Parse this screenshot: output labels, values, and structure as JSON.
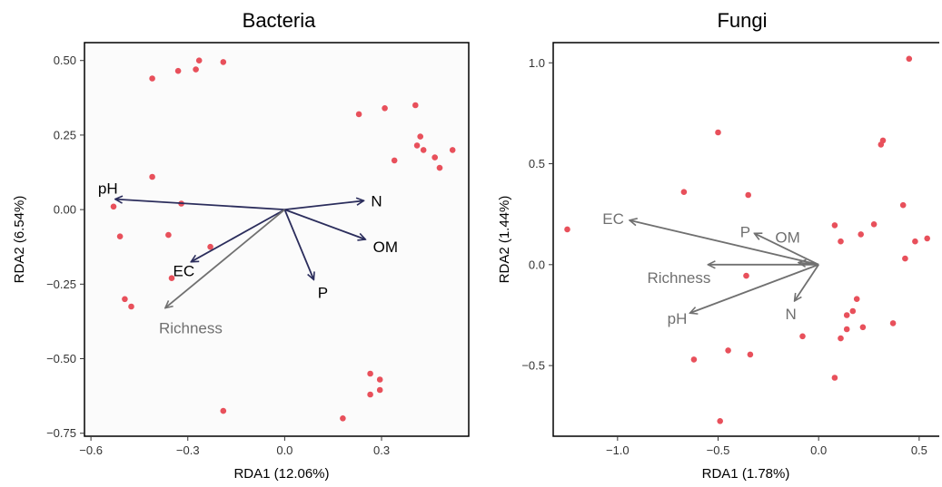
{
  "colors": {
    "point": "#E8505B",
    "arrow_dark": "#2B2D5C",
    "arrow_gray": "#707070",
    "panel_bg": "#FBFBFB",
    "frame": "#000000"
  },
  "chart_data": [
    {
      "type": "scatter",
      "title": "Bacteria",
      "xlabel": "RDA1 (12.06%)",
      "ylabel": "RDA2 (6.54%)",
      "xlim": [
        -0.62,
        0.57
      ],
      "ylim": [
        -0.76,
        0.56
      ],
      "xticks": [
        -0.6,
        -0.3,
        0.0,
        0.3
      ],
      "xtick_labels": [
        "−0.6",
        "−0.3",
        "0.0",
        "0.3"
      ],
      "yticks": [
        -0.75,
        -0.5,
        -0.25,
        0.0,
        0.25,
        0.5
      ],
      "ytick_labels": [
        "−0.75",
        "−0.50",
        "−0.25",
        "0.00",
        "0.25",
        "0.50"
      ],
      "grid": false,
      "points": [
        {
          "x": -0.41,
          "y": 0.44
        },
        {
          "x": -0.33,
          "y": 0.465
        },
        {
          "x": -0.275,
          "y": 0.47
        },
        {
          "x": -0.265,
          "y": 0.5
        },
        {
          "x": -0.19,
          "y": 0.495
        },
        {
          "x": 0.23,
          "y": 0.32
        },
        {
          "x": 0.31,
          "y": 0.34
        },
        {
          "x": 0.405,
          "y": 0.35
        },
        {
          "x": 0.41,
          "y": 0.215
        },
        {
          "x": 0.42,
          "y": 0.245
        },
        {
          "x": 0.43,
          "y": 0.2
        },
        {
          "x": 0.465,
          "y": 0.175
        },
        {
          "x": 0.48,
          "y": 0.14
        },
        {
          "x": 0.52,
          "y": 0.2
        },
        {
          "x": 0.34,
          "y": 0.165
        },
        {
          "x": -0.41,
          "y": 0.11
        },
        {
          "x": -0.53,
          "y": 0.01
        },
        {
          "x": -0.32,
          "y": 0.02
        },
        {
          "x": -0.51,
          "y": -0.09
        },
        {
          "x": -0.36,
          "y": -0.085
        },
        {
          "x": -0.23,
          "y": -0.125
        },
        {
          "x": -0.35,
          "y": -0.23
        },
        {
          "x": -0.495,
          "y": -0.3
        },
        {
          "x": -0.475,
          "y": -0.325
        },
        {
          "x": -0.19,
          "y": -0.675
        },
        {
          "x": 0.265,
          "y": -0.55
        },
        {
          "x": 0.295,
          "y": -0.57
        },
        {
          "x": 0.265,
          "y": -0.62
        },
        {
          "x": 0.295,
          "y": -0.605
        },
        {
          "x": 0.18,
          "y": -0.7
        }
      ],
      "arrows": [
        {
          "label": "pH",
          "x": -0.525,
          "y": 0.035,
          "color": "arrow_dark"
        },
        {
          "label": "N",
          "x": 0.245,
          "y": 0.03,
          "color": "arrow_dark"
        },
        {
          "label": "OM",
          "x": 0.25,
          "y": -0.1,
          "color": "arrow_dark"
        },
        {
          "label": "P",
          "x": 0.09,
          "y": -0.235,
          "color": "arrow_dark"
        },
        {
          "label": "EC",
          "x": -0.29,
          "y": -0.175,
          "color": "arrow_dark"
        },
        {
          "label": "Richness",
          "x": -0.37,
          "y": -0.33,
          "color": "arrow_gray"
        }
      ]
    },
    {
      "type": "scatter",
      "title": "Fungi",
      "xlabel": "RDA1 (1.78%)",
      "ylabel": "RDA2 (1.44%)",
      "xlim": [
        -1.32,
        0.6
      ],
      "ylim": [
        -0.85,
        1.1
      ],
      "xticks": [
        -1.0,
        -0.5,
        0.0,
        0.5
      ],
      "xtick_labels": [
        "−1.0",
        "−0.5",
        "0.0",
        "0.5"
      ],
      "yticks": [
        -0.5,
        0.0,
        0.5,
        1.0
      ],
      "ytick_labels": [
        "−0.5",
        "0.0",
        "0.5",
        "1.0"
      ],
      "grid": false,
      "points": [
        {
          "x": 0.45,
          "y": 1.02
        },
        {
          "x": -0.5,
          "y": 0.655
        },
        {
          "x": 0.32,
          "y": 0.615
        },
        {
          "x": 0.31,
          "y": 0.595
        },
        {
          "x": -0.67,
          "y": 0.36
        },
        {
          "x": -0.35,
          "y": 0.345
        },
        {
          "x": 0.42,
          "y": 0.295
        },
        {
          "x": 0.08,
          "y": 0.195
        },
        {
          "x": 0.275,
          "y": 0.2
        },
        {
          "x": -1.25,
          "y": 0.175
        },
        {
          "x": 0.21,
          "y": 0.15
        },
        {
          "x": 0.11,
          "y": 0.115
        },
        {
          "x": 0.48,
          "y": 0.115
        },
        {
          "x": 0.54,
          "y": 0.13
        },
        {
          "x": 0.43,
          "y": 0.03
        },
        {
          "x": -0.36,
          "y": -0.055
        },
        {
          "x": 0.19,
          "y": -0.17
        },
        {
          "x": 0.17,
          "y": -0.23
        },
        {
          "x": 0.14,
          "y": -0.25
        },
        {
          "x": 0.14,
          "y": -0.32
        },
        {
          "x": 0.22,
          "y": -0.31
        },
        {
          "x": 0.37,
          "y": -0.29
        },
        {
          "x": -0.08,
          "y": -0.355
        },
        {
          "x": 0.11,
          "y": -0.365
        },
        {
          "x": -0.45,
          "y": -0.425
        },
        {
          "x": -0.34,
          "y": -0.445
        },
        {
          "x": -0.62,
          "y": -0.47
        },
        {
          "x": 0.08,
          "y": -0.56
        },
        {
          "x": -0.49,
          "y": -0.775
        }
      ],
      "arrows": [
        {
          "label": "EC",
          "x": -0.94,
          "y": 0.22,
          "color": "arrow_gray"
        },
        {
          "label": "P",
          "x": -0.32,
          "y": 0.155,
          "color": "arrow_gray"
        },
        {
          "label": "OM",
          "x": -0.1,
          "y": 0.01,
          "color": "arrow_gray"
        },
        {
          "label": "Richness",
          "x": -0.55,
          "y": 0.0,
          "color": "arrow_gray"
        },
        {
          "label": "N",
          "x": -0.12,
          "y": -0.18,
          "color": "arrow_gray"
        },
        {
          "label": "pH",
          "x": -0.64,
          "y": -0.24,
          "color": "arrow_gray"
        }
      ]
    }
  ]
}
